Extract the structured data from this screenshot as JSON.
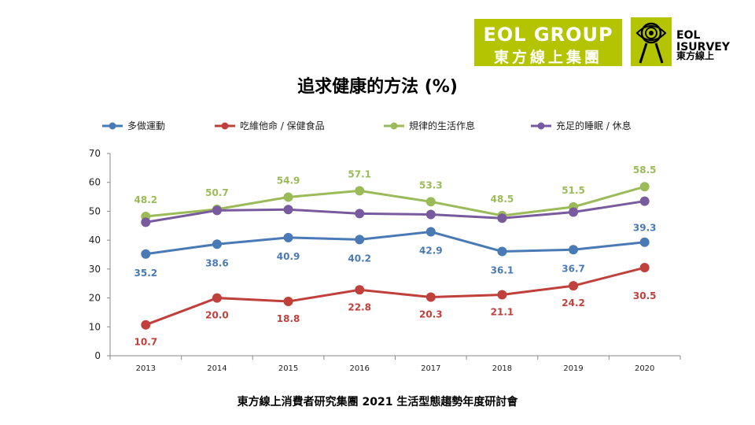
{
  "header": {
    "logo_group_line1": "EOL GROUP",
    "logo_group_line2": "東方線上集團",
    "logo_survey_line1": "EOL",
    "logo_survey_line2": "ISURVEY",
    "logo_survey_line3": "東方線上",
    "brand_color": "#b5c400"
  },
  "footer": {
    "text": "東方線上消費者研究集團 2021 生活型態趨勢年度研討會"
  },
  "chart_data": {
    "type": "line",
    "title": "追求健康的方法 (%)",
    "xlabel": "",
    "ylabel": "",
    "x": [
      "2013",
      "2014",
      "2015",
      "2016",
      "2017",
      "2018",
      "2019",
      "2020"
    ],
    "ylim": [
      0,
      70
    ],
    "yticks": [
      "0",
      "10",
      "20",
      "30",
      "40",
      "50",
      "60",
      "70"
    ],
    "grid": false,
    "legend_position": "top",
    "series": [
      {
        "name": "多做運動",
        "color": "#4a7ab5",
        "values": [
          35.2,
          38.6,
          40.9,
          40.2,
          42.9,
          36.1,
          36.7,
          39.3
        ],
        "labels": [
          "35.2",
          "38.6",
          "40.9",
          "40.2",
          "42.9",
          "36.1",
          "36.7",
          "39.3"
        ]
      },
      {
        "name": "吃維他命 / 保健食品",
        "color": "#c0403c",
        "values": [
          10.7,
          20.0,
          18.8,
          22.8,
          20.3,
          21.1,
          24.2,
          30.5
        ],
        "labels": [
          "10.7",
          "20.0",
          "18.8",
          "22.8",
          "20.3",
          "21.1",
          "24.2",
          "30.5"
        ]
      },
      {
        "name": "規律的生活作息",
        "color": "#9bbb59",
        "values": [
          48.2,
          50.7,
          54.9,
          57.1,
          53.3,
          48.5,
          51.5,
          58.5
        ],
        "labels": [
          "48.2",
          "50.7",
          "54.9",
          "57.1",
          "53.3",
          "48.5",
          "51.5",
          "58.5"
        ]
      },
      {
        "name": "充足的睡眠 / 休息",
        "color": "#7a5a9e",
        "values": [
          46.2,
          50.3,
          50.6,
          49.2,
          48.9,
          47.6,
          49.7,
          53.5
        ],
        "labels": []
      }
    ]
  }
}
